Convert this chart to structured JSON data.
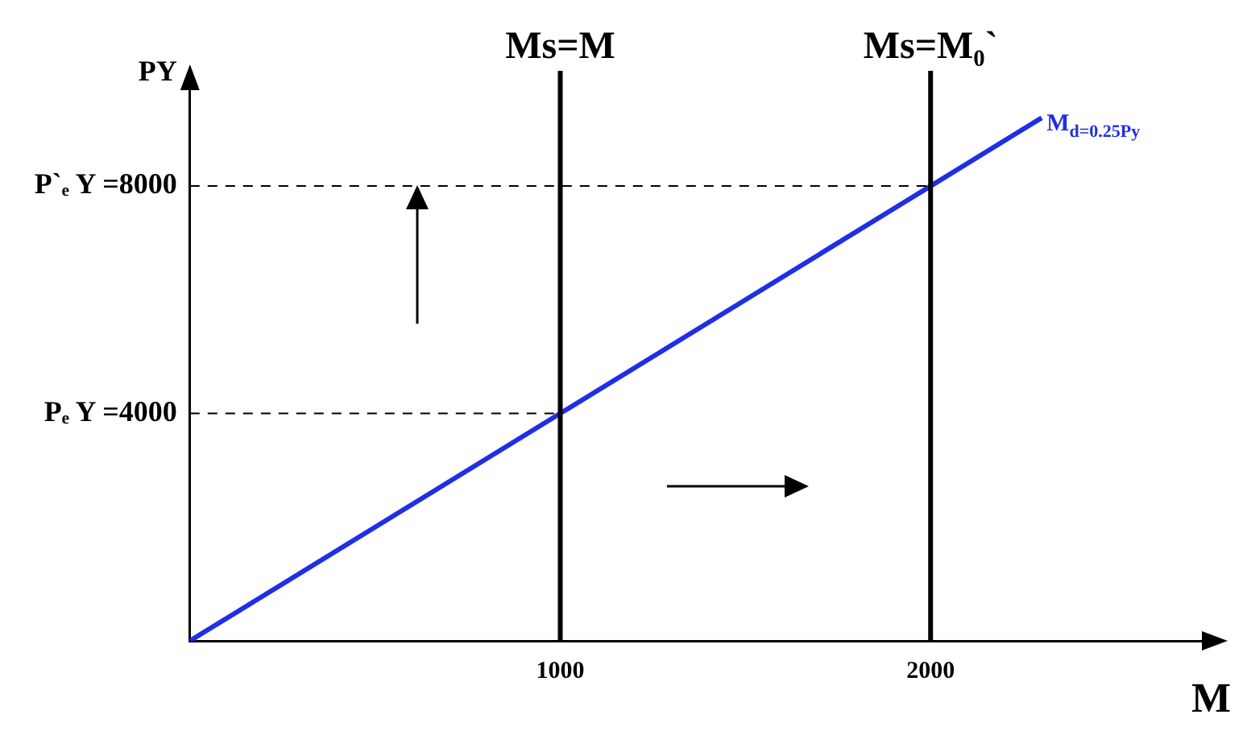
{
  "chart_data": {
    "type": "line",
    "xlabel": "M",
    "ylabel": "PY",
    "x": [
      0,
      1000,
      2000,
      2300
    ],
    "series": [
      {
        "name": "M$_{d=0.25Py}$",
        "color": "#1f2fe6",
        "values": [
          0,
          4000,
          8000,
          9200
        ]
      }
    ],
    "xlim": [
      0,
      2750
    ],
    "ylim": [
      0,
      9800
    ],
    "xticks": [
      1000,
      2000
    ],
    "yticks": [
      {
        "value": 4000,
        "label": "Pₑ Y =4000"
      },
      {
        "value": 8000,
        "label": "P`ₑ Y =8000"
      }
    ],
    "ref_lines": [
      {
        "axis": "x",
        "value": 1000,
        "label": "Ms=M",
        "color": "#000000",
        "line_style": "solid"
      },
      {
        "axis": "x",
        "value": 2000,
        "label": "Ms=M₀`",
        "color": "#000000",
        "line_style": "solid"
      },
      {
        "axis": "y",
        "value": 4000,
        "color": "#000000",
        "line_style": "dashed"
      },
      {
        "axis": "y",
        "value": 8000,
        "color": "#000000",
        "line_style": "dashed"
      }
    ],
    "grid": false,
    "legend": false,
    "marker": "none",
    "line_style": "solid"
  }
}
